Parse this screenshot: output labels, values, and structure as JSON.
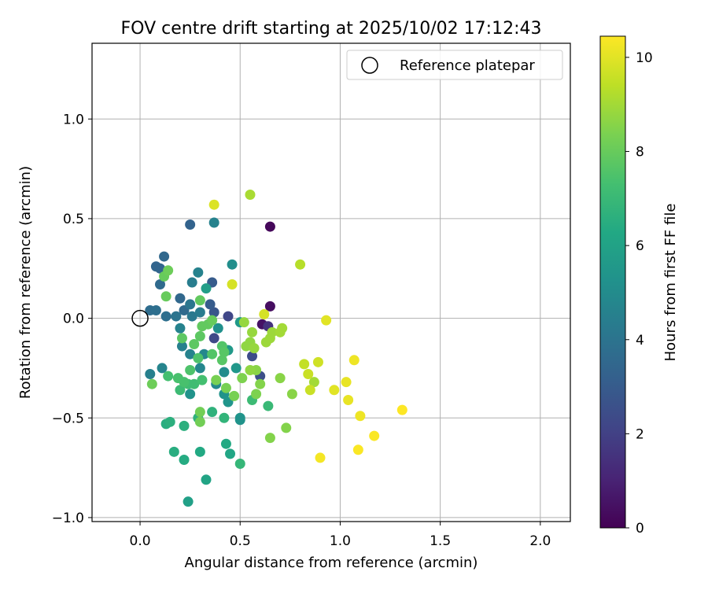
{
  "chart_data": {
    "type": "scatter",
    "title": "FOV centre drift starting at 2025/10/02 17:12:43",
    "xlabel": "Angular distance from reference (arcmin)",
    "ylabel": "Rotation from reference (arcmin)",
    "xlim": [
      -0.24,
      2.15
    ],
    "ylim": [
      -1.02,
      1.38
    ],
    "xticks": [
      0.0,
      0.5,
      1.0,
      1.5,
      2.0
    ],
    "xtick_labels": [
      "0.0",
      "0.5",
      "1.0",
      "1.5",
      "2.0"
    ],
    "yticks": [
      -1.0,
      -0.5,
      0.0,
      0.5,
      1.0
    ],
    "ytick_labels": [
      "−1.0",
      "−0.5",
      "0.0",
      "0.5",
      "1.0"
    ],
    "grid": true,
    "legend": {
      "label": "Reference platepar",
      "position": "top-right"
    },
    "reference_point": {
      "x": 0.0,
      "y": 0.0
    },
    "colorbar": {
      "label": "Hours from first FF file",
      "min": 0,
      "max": 10.45,
      "ticks": [
        0,
        2,
        4,
        6,
        8,
        10
      ],
      "tick_labels": [
        "0",
        "2",
        "4",
        "6",
        "8",
        "10"
      ],
      "colormap": "viridis"
    },
    "points": [
      {
        "x": 0.65,
        "y": 0.46,
        "h": 0.2
      },
      {
        "x": 0.65,
        "y": 0.06,
        "h": 0.4
      },
      {
        "x": 0.61,
        "y": -0.03,
        "h": 0.5
      },
      {
        "x": 0.64,
        "y": -0.04,
        "h": 1.5
      },
      {
        "x": 0.44,
        "y": 0.01,
        "h": 2.2
      },
      {
        "x": 0.37,
        "y": -0.1,
        "h": 2.3
      },
      {
        "x": 0.56,
        "y": -0.19,
        "h": 2.4
      },
      {
        "x": 0.6,
        "y": -0.29,
        "h": 2.5
      },
      {
        "x": 0.37,
        "y": 0.03,
        "h": 2.8
      },
      {
        "x": 0.35,
        "y": 0.07,
        "h": 3.0
      },
      {
        "x": 0.36,
        "y": 0.18,
        "h": 3.0
      },
      {
        "x": 0.25,
        "y": 0.47,
        "h": 3.3
      },
      {
        "x": 0.12,
        "y": 0.31,
        "h": 3.5
      },
      {
        "x": 0.08,
        "y": 0.26,
        "h": 3.4
      },
      {
        "x": 0.1,
        "y": 0.25,
        "h": 3.4
      },
      {
        "x": 0.1,
        "y": 0.17,
        "h": 3.6
      },
      {
        "x": 0.2,
        "y": 0.1,
        "h": 3.5
      },
      {
        "x": 0.22,
        "y": 0.04,
        "h": 3.6
      },
      {
        "x": 0.05,
        "y": 0.04,
        "h": 3.7
      },
      {
        "x": 0.08,
        "y": 0.04,
        "h": 3.8
      },
      {
        "x": 0.13,
        "y": 0.01,
        "h": 3.8
      },
      {
        "x": 0.18,
        "y": 0.01,
        "h": 4.0
      },
      {
        "x": 0.26,
        "y": 0.01,
        "h": 4.2
      },
      {
        "x": 0.25,
        "y": 0.07,
        "h": 4.1
      },
      {
        "x": 0.3,
        "y": 0.03,
        "h": 4.3
      },
      {
        "x": 0.37,
        "y": 0.48,
        "h": 4.6
      },
      {
        "x": 0.26,
        "y": 0.18,
        "h": 4.4
      },
      {
        "x": 0.29,
        "y": 0.23,
        "h": 4.6
      },
      {
        "x": 0.21,
        "y": -0.14,
        "h": 4.5
      },
      {
        "x": 0.25,
        "y": -0.18,
        "h": 4.6
      },
      {
        "x": 0.2,
        "y": -0.05,
        "h": 4.6
      },
      {
        "x": 0.05,
        "y": -0.28,
        "h": 4.5
      },
      {
        "x": 0.11,
        "y": -0.25,
        "h": 4.7
      },
      {
        "x": 0.3,
        "y": -0.25,
        "h": 4.8
      },
      {
        "x": 0.32,
        "y": -0.18,
        "h": 4.8
      },
      {
        "x": 0.38,
        "y": -0.33,
        "h": 4.9
      },
      {
        "x": 0.42,
        "y": -0.27,
        "h": 5.0
      },
      {
        "x": 0.46,
        "y": 0.27,
        "h": 5.1
      },
      {
        "x": 0.39,
        "y": -0.05,
        "h": 5.2
      },
      {
        "x": 0.25,
        "y": -0.38,
        "h": 5.3
      },
      {
        "x": 0.42,
        "y": -0.38,
        "h": 5.3
      },
      {
        "x": 0.44,
        "y": -0.42,
        "h": 5.4
      },
      {
        "x": 0.5,
        "y": -0.5,
        "h": 5.4
      },
      {
        "x": 0.5,
        "y": -0.51,
        "h": 5.3
      },
      {
        "x": 0.48,
        "y": -0.25,
        "h": 5.5
      },
      {
        "x": 0.44,
        "y": -0.16,
        "h": 5.6
      },
      {
        "x": 0.5,
        "y": -0.02,
        "h": 5.6
      },
      {
        "x": 0.33,
        "y": 0.15,
        "h": 5.8
      },
      {
        "x": 0.24,
        "y": -0.92,
        "h": 5.9
      },
      {
        "x": 0.33,
        "y": -0.81,
        "h": 6.1
      },
      {
        "x": 0.45,
        "y": -0.68,
        "h": 6.2
      },
      {
        "x": 0.43,
        "y": -0.63,
        "h": 6.3
      },
      {
        "x": 0.3,
        "y": -0.67,
        "h": 6.3
      },
      {
        "x": 0.22,
        "y": -0.71,
        "h": 6.4
      },
      {
        "x": 0.17,
        "y": -0.67,
        "h": 6.5
      },
      {
        "x": 0.13,
        "y": -0.53,
        "h": 6.5
      },
      {
        "x": 0.15,
        "y": -0.52,
        "h": 6.6
      },
      {
        "x": 0.22,
        "y": -0.54,
        "h": 6.6
      },
      {
        "x": 0.29,
        "y": -0.5,
        "h": 6.7
      },
      {
        "x": 0.36,
        "y": -0.47,
        "h": 6.7
      },
      {
        "x": 0.42,
        "y": -0.5,
        "h": 6.8
      },
      {
        "x": 0.5,
        "y": -0.73,
        "h": 6.9
      },
      {
        "x": 0.64,
        "y": -0.44,
        "h": 7.0
      },
      {
        "x": 0.56,
        "y": -0.41,
        "h": 7.1
      },
      {
        "x": 0.2,
        "y": -0.36,
        "h": 7.1
      },
      {
        "x": 0.24,
        "y": -0.33,
        "h": 7.2
      },
      {
        "x": 0.27,
        "y": -0.33,
        "h": 7.2
      },
      {
        "x": 0.31,
        "y": -0.31,
        "h": 7.3
      },
      {
        "x": 0.14,
        "y": -0.29,
        "h": 7.3
      },
      {
        "x": 0.19,
        "y": -0.3,
        "h": 7.4
      },
      {
        "x": 0.22,
        "y": -0.32,
        "h": 7.4
      },
      {
        "x": 0.25,
        "y": -0.26,
        "h": 7.5
      },
      {
        "x": 0.29,
        "y": -0.2,
        "h": 7.5
      },
      {
        "x": 0.36,
        "y": -0.18,
        "h": 7.6
      },
      {
        "x": 0.41,
        "y": -0.14,
        "h": 7.6
      },
      {
        "x": 0.42,
        "y": -0.17,
        "h": 7.7
      },
      {
        "x": 0.41,
        "y": -0.21,
        "h": 7.7
      },
      {
        "x": 0.27,
        "y": -0.13,
        "h": 7.8
      },
      {
        "x": 0.3,
        "y": -0.09,
        "h": 7.8
      },
      {
        "x": 0.21,
        "y": -0.1,
        "h": 7.8
      },
      {
        "x": 0.31,
        "y": -0.04,
        "h": 7.9
      },
      {
        "x": 0.34,
        "y": -0.03,
        "h": 7.9
      },
      {
        "x": 0.36,
        "y": -0.01,
        "h": 8.0
      },
      {
        "x": 0.3,
        "y": 0.09,
        "h": 7.9
      },
      {
        "x": 0.13,
        "y": 0.11,
        "h": 8.0
      },
      {
        "x": 0.12,
        "y": 0.21,
        "h": 8.0
      },
      {
        "x": 0.14,
        "y": 0.24,
        "h": 8.1
      },
      {
        "x": 0.06,
        "y": -0.33,
        "h": 8.1
      },
      {
        "x": 0.3,
        "y": -0.52,
        "h": 8.2
      },
      {
        "x": 0.3,
        "y": -0.47,
        "h": 8.2
      },
      {
        "x": 0.38,
        "y": -0.31,
        "h": 8.3
      },
      {
        "x": 0.43,
        "y": -0.35,
        "h": 8.3
      },
      {
        "x": 0.47,
        "y": -0.39,
        "h": 8.3
      },
      {
        "x": 0.51,
        "y": -0.3,
        "h": 8.4
      },
      {
        "x": 0.58,
        "y": -0.38,
        "h": 8.4
      },
      {
        "x": 0.6,
        "y": -0.33,
        "h": 8.5
      },
      {
        "x": 0.65,
        "y": -0.6,
        "h": 8.5
      },
      {
        "x": 0.73,
        "y": -0.55,
        "h": 8.5
      },
      {
        "x": 0.76,
        "y": -0.38,
        "h": 8.6
      },
      {
        "x": 0.7,
        "y": -0.3,
        "h": 8.6
      },
      {
        "x": 0.58,
        "y": -0.26,
        "h": 8.6
      },
      {
        "x": 0.55,
        "y": -0.26,
        "h": 8.7
      },
      {
        "x": 0.53,
        "y": -0.14,
        "h": 8.7
      },
      {
        "x": 0.55,
        "y": -0.12,
        "h": 8.7
      },
      {
        "x": 0.57,
        "y": -0.15,
        "h": 8.8
      },
      {
        "x": 0.56,
        "y": -0.07,
        "h": 8.8
      },
      {
        "x": 0.52,
        "y": -0.02,
        "h": 8.8
      },
      {
        "x": 0.63,
        "y": -0.12,
        "h": 8.9
      },
      {
        "x": 0.65,
        "y": -0.1,
        "h": 8.9
      },
      {
        "x": 0.66,
        "y": -0.07,
        "h": 8.9
      },
      {
        "x": 0.7,
        "y": -0.07,
        "h": 9.0
      },
      {
        "x": 0.71,
        "y": -0.05,
        "h": 9.0
      },
      {
        "x": 0.87,
        "y": -0.32,
        "h": 9.0
      },
      {
        "x": 0.55,
        "y": 0.62,
        "h": 9.1
      },
      {
        "x": 0.8,
        "y": 0.27,
        "h": 9.3
      },
      {
        "x": 0.82,
        "y": -0.23,
        "h": 9.5
      },
      {
        "x": 0.84,
        "y": -0.28,
        "h": 9.6
      },
      {
        "x": 0.85,
        "y": -0.36,
        "h": 9.6
      },
      {
        "x": 0.89,
        "y": -0.22,
        "h": 9.7
      },
      {
        "x": 0.62,
        "y": 0.02,
        "h": 9.8
      },
      {
        "x": 0.46,
        "y": 0.17,
        "h": 9.8
      },
      {
        "x": 0.37,
        "y": 0.57,
        "h": 9.9
      },
      {
        "x": 0.93,
        "y": -0.01,
        "h": 10.0
      },
      {
        "x": 0.97,
        "y": -0.36,
        "h": 10.0
      },
      {
        "x": 1.03,
        "y": -0.32,
        "h": 10.1
      },
      {
        "x": 1.04,
        "y": -0.41,
        "h": 10.1
      },
      {
        "x": 1.07,
        "y": -0.21,
        "h": 10.2
      },
      {
        "x": 1.1,
        "y": -0.49,
        "h": 10.2
      },
      {
        "x": 0.9,
        "y": -0.7,
        "h": 10.3
      },
      {
        "x": 1.09,
        "y": -0.66,
        "h": 10.4
      },
      {
        "x": 1.17,
        "y": -0.59,
        "h": 10.4
      },
      {
        "x": 1.31,
        "y": -0.46,
        "h": 10.45
      }
    ]
  }
}
